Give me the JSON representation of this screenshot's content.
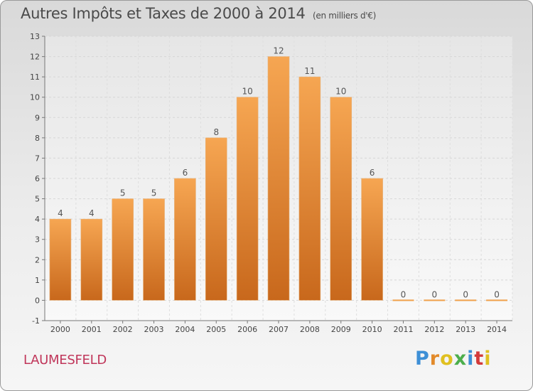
{
  "title": "Autres Impôts et Taxes de 2000 à 2014",
  "unit_note": "(en milliers d'€)",
  "city": "LAUMESFELD",
  "logo": {
    "letters": [
      "P",
      "r",
      "o",
      "x",
      "i",
      "t",
      "i"
    ],
    "colors": [
      "#3d8fd6",
      "#e28a2a",
      "#e0c020",
      "#4cae4c",
      "#3d8fd6",
      "#d33a3a",
      "#e0c020"
    ]
  },
  "colors": {
    "bar": "#f0a04a",
    "axis": "#777777",
    "grid": "#dddddd"
  },
  "chart_data": {
    "type": "bar",
    "categories": [
      "2000",
      "2001",
      "2002",
      "2003",
      "2004",
      "2005",
      "2006",
      "2007",
      "2008",
      "2009",
      "2010",
      "2011",
      "2012",
      "2013",
      "2014"
    ],
    "values": [
      4,
      4,
      5,
      5,
      6,
      8,
      10,
      12,
      11,
      10,
      6,
      0,
      0,
      0,
      0
    ],
    "data_labels": [
      "4",
      "4",
      "5",
      "5",
      "6",
      "8",
      "10",
      "12",
      "11",
      "10",
      "6",
      "0",
      "0",
      "0",
      "0"
    ],
    "title": "Autres Impôts et Taxes de 2000 à 2014",
    "xlabel": "",
    "ylabel": "",
    "ylim": [
      -1,
      13
    ],
    "yticks": [
      "-1",
      "0",
      "1",
      "2",
      "3",
      "4",
      "5",
      "6",
      "7",
      "8",
      "9",
      "10",
      "11",
      "12",
      "13"
    ],
    "grid": true
  }
}
